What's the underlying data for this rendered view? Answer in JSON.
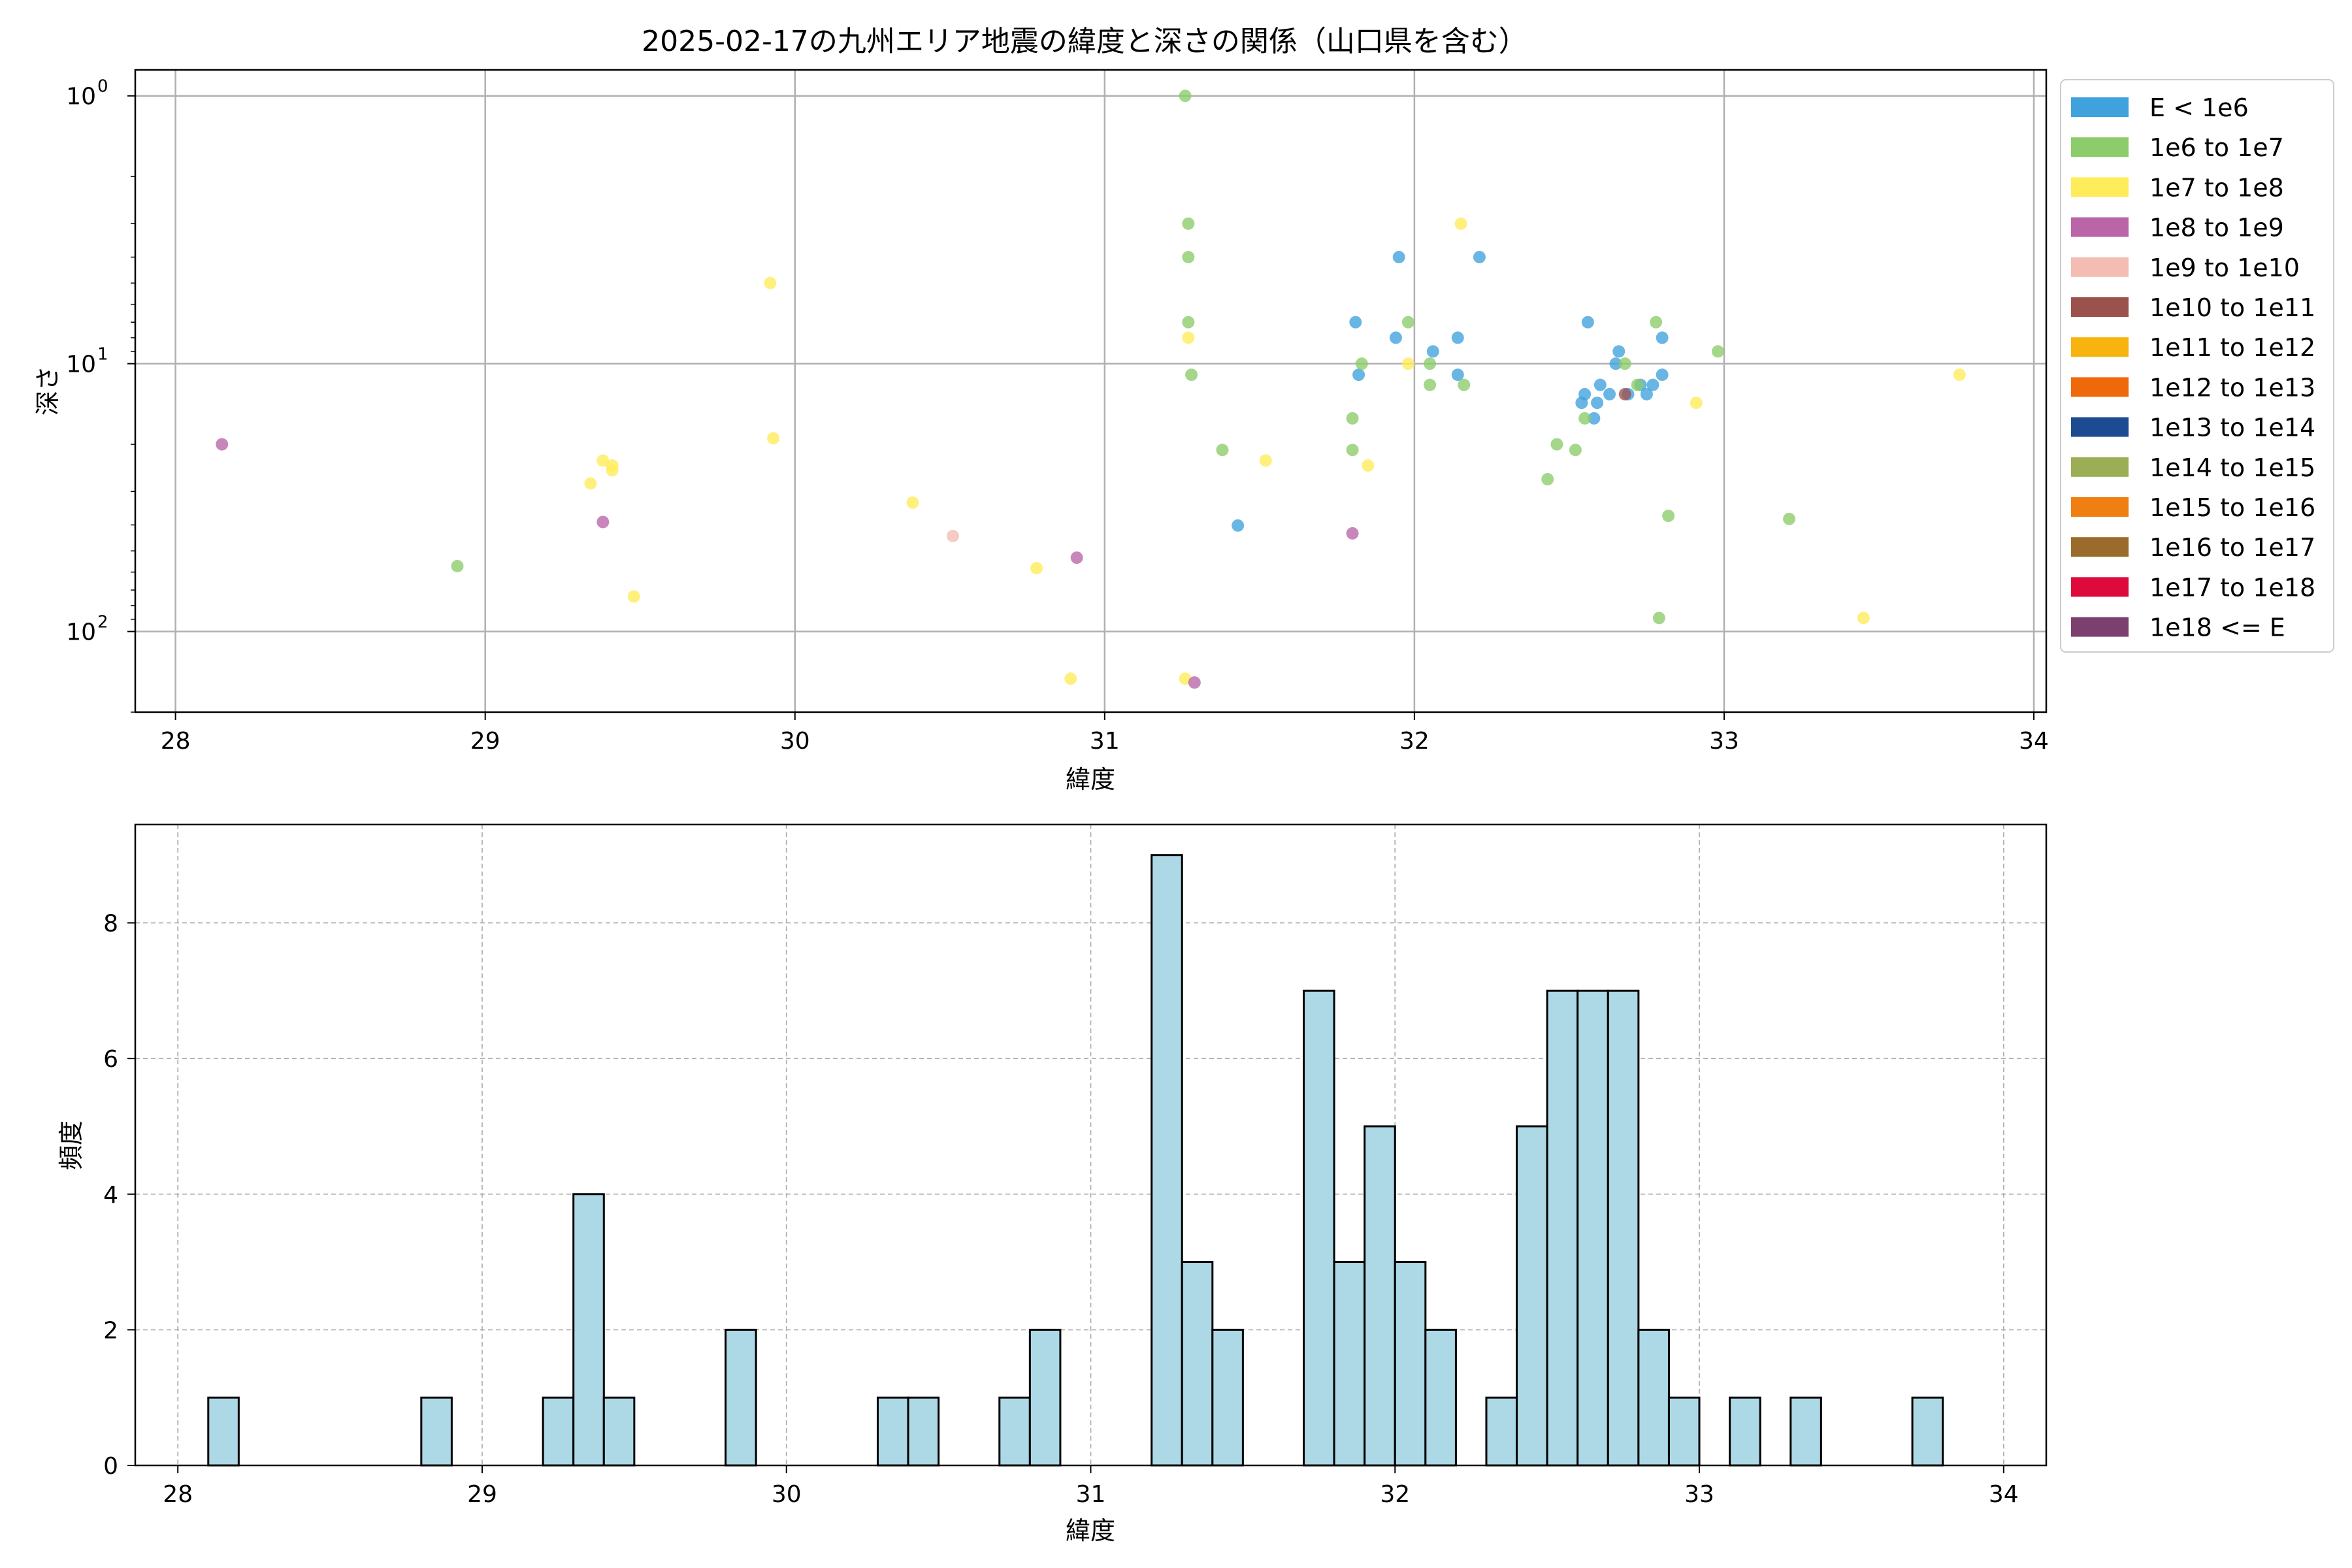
{
  "chart_data": [
    {
      "type": "scatter",
      "title": "2025-02-17の九州エリア地震の緯度と深さの関係（山口県を含む）",
      "xlabel": "緯度",
      "ylabel": "深さ",
      "xlim": [
        27.87,
        34.04
      ],
      "ylim": [
        200,
        0.8
      ],
      "yscale": "log",
      "y_inverted": true,
      "grid": true,
      "legend_placement": "outside-right",
      "xticks": [
        "28",
        "29",
        "30",
        "31",
        "32",
        "33",
        "34"
      ],
      "yticks": [
        {
          "value": 1,
          "base": "10",
          "exp": "0"
        },
        {
          "value": 10,
          "base": "10",
          "exp": "1"
        },
        {
          "value": 100,
          "base": "10",
          "exp": "2"
        }
      ],
      "series": [
        {
          "name": "E < 1e6",
          "color": "#3fa2dc",
          "points": [
            [
              31.43,
              40.2
            ],
            [
              31.81,
              7.0
            ],
            [
              31.82,
              11.0
            ],
            [
              31.94,
              8.0
            ],
            [
              31.95,
              4.0
            ],
            [
              32.06,
              9.0
            ],
            [
              32.14,
              11.0
            ],
            [
              32.14,
              8.0
            ],
            [
              32.21,
              4.0
            ],
            [
              32.54,
              14.0
            ],
            [
              32.55,
              13.0
            ],
            [
              32.56,
              7.0
            ],
            [
              32.58,
              16.0
            ],
            [
              32.59,
              14.0
            ],
            [
              32.6,
              12.0
            ],
            [
              32.63,
              13.0
            ],
            [
              32.65,
              10.0
            ],
            [
              32.66,
              9.0
            ],
            [
              32.69,
              13.0
            ],
            [
              32.73,
              12.0
            ],
            [
              32.75,
              13.0
            ],
            [
              32.77,
              12.0
            ],
            [
              32.8,
              11.0
            ],
            [
              32.8,
              8.0
            ]
          ]
        },
        {
          "name": "1e6 to 1e7",
          "color": "#8ccc6a",
          "points": [
            [
              28.91,
              57.0
            ],
            [
              31.26,
              1.0
            ],
            [
              31.27,
              3.0
            ],
            [
              31.27,
              4.0
            ],
            [
              31.27,
              7.0
            ],
            [
              31.28,
              11.0
            ],
            [
              31.38,
              21.0
            ],
            [
              31.8,
              16.0
            ],
            [
              31.8,
              21.0
            ],
            [
              31.83,
              10.0
            ],
            [
              31.98,
              7.0
            ],
            [
              32.05,
              10.0
            ],
            [
              32.05,
              12.0
            ],
            [
              32.16,
              12.0
            ],
            [
              32.43,
              27.0
            ],
            [
              32.46,
              20.0
            ],
            [
              32.52,
              21.0
            ],
            [
              32.55,
              16.0
            ],
            [
              32.68,
              10.0
            ],
            [
              32.72,
              12.0
            ],
            [
              32.78,
              7.0
            ],
            [
              32.79,
              89.0
            ],
            [
              32.82,
              37.0
            ],
            [
              32.98,
              9.0
            ],
            [
              33.21,
              38.0
            ]
          ]
        },
        {
          "name": "1e7 to 1e8",
          "color": "#ffec5a",
          "points": [
            [
              29.34,
              28.0
            ],
            [
              29.38,
              23.0
            ],
            [
              29.41,
              24.0
            ],
            [
              29.41,
              25.0
            ],
            [
              29.48,
              74.0
            ],
            [
              29.92,
              5.0
            ],
            [
              29.93,
              19.0
            ],
            [
              30.38,
              33.0
            ],
            [
              30.78,
              58.0
            ],
            [
              30.89,
              150.0
            ],
            [
              31.26,
              150.0
            ],
            [
              31.27,
              8.0
            ],
            [
              31.52,
              23.0
            ],
            [
              31.85,
              24.0
            ],
            [
              31.98,
              10.0
            ],
            [
              32.15,
              3.0
            ],
            [
              32.91,
              14.0
            ],
            [
              33.45,
              89.0
            ],
            [
              33.76,
              11.0
            ]
          ]
        },
        {
          "name": "1e8 to 1e9",
          "color": "#b965a8",
          "points": [
            [
              28.15,
              20.0
            ],
            [
              29.38,
              39.0
            ],
            [
              30.91,
              53.0
            ],
            [
              31.29,
              155.0
            ],
            [
              31.8,
              43.0
            ]
          ]
        },
        {
          "name": "1e9 to 1e10",
          "color": "#f4bdb4",
          "points": [
            [
              30.51,
              44.0
            ]
          ]
        },
        {
          "name": "1e10 to 1e11",
          "color": "#9c524c",
          "points": [
            [
              32.68,
              13.0
            ]
          ]
        },
        {
          "name": "1e11 to 1e12",
          "color": "#f8b40e",
          "points": []
        },
        {
          "name": "1e12 to 1e13",
          "color": "#ef680a",
          "points": []
        },
        {
          "name": "1e13 to 1e14",
          "color": "#1d4b92",
          "points": []
        },
        {
          "name": "1e14 to 1e15",
          "color": "#9bae55",
          "points": []
        },
        {
          "name": "1e15 to 1e16",
          "color": "#ef7f11",
          "points": []
        },
        {
          "name": "1e16 to 1e17",
          "color": "#9a6b2a",
          "points": []
        },
        {
          "name": "1e17 to 1e18",
          "color": "#df0a3c",
          "points": []
        },
        {
          "name": "1e18 <= E",
          "color": "#7b3f70",
          "points": []
        }
      ]
    },
    {
      "type": "bar",
      "subtype": "histogram",
      "xlabel": "緯度",
      "ylabel": "頻度",
      "xlim": [
        27.86,
        34.14
      ],
      "ylim": [
        0,
        9.45
      ],
      "grid": true,
      "grid_style": "dashed",
      "bar_color": "#add8e6",
      "edge_color": "#000000",
      "bin_width": 0.1,
      "xticks": [
        "28",
        "29",
        "30",
        "31",
        "32",
        "33",
        "34"
      ],
      "yticks": [
        "0",
        "2",
        "4",
        "6",
        "8"
      ],
      "bins": [
        [
          28.15,
          1
        ],
        [
          28.85,
          1
        ],
        [
          29.25,
          1
        ],
        [
          29.35,
          4
        ],
        [
          29.45,
          1
        ],
        [
          29.85,
          2
        ],
        [
          30.35,
          1
        ],
        [
          30.45,
          1
        ],
        [
          30.75,
          1
        ],
        [
          30.85,
          2
        ],
        [
          31.25,
          9
        ],
        [
          31.35,
          3
        ],
        [
          31.45,
          2
        ],
        [
          31.75,
          7
        ],
        [
          31.85,
          3
        ],
        [
          31.95,
          5
        ],
        [
          32.05,
          3
        ],
        [
          32.15,
          2
        ],
        [
          32.35,
          1
        ],
        [
          32.45,
          5
        ],
        [
          32.55,
          7
        ],
        [
          32.65,
          7
        ],
        [
          32.75,
          7
        ],
        [
          32.85,
          2
        ],
        [
          32.95,
          1
        ],
        [
          33.15,
          1
        ],
        [
          33.35,
          1
        ],
        [
          33.75,
          1
        ]
      ]
    }
  ]
}
